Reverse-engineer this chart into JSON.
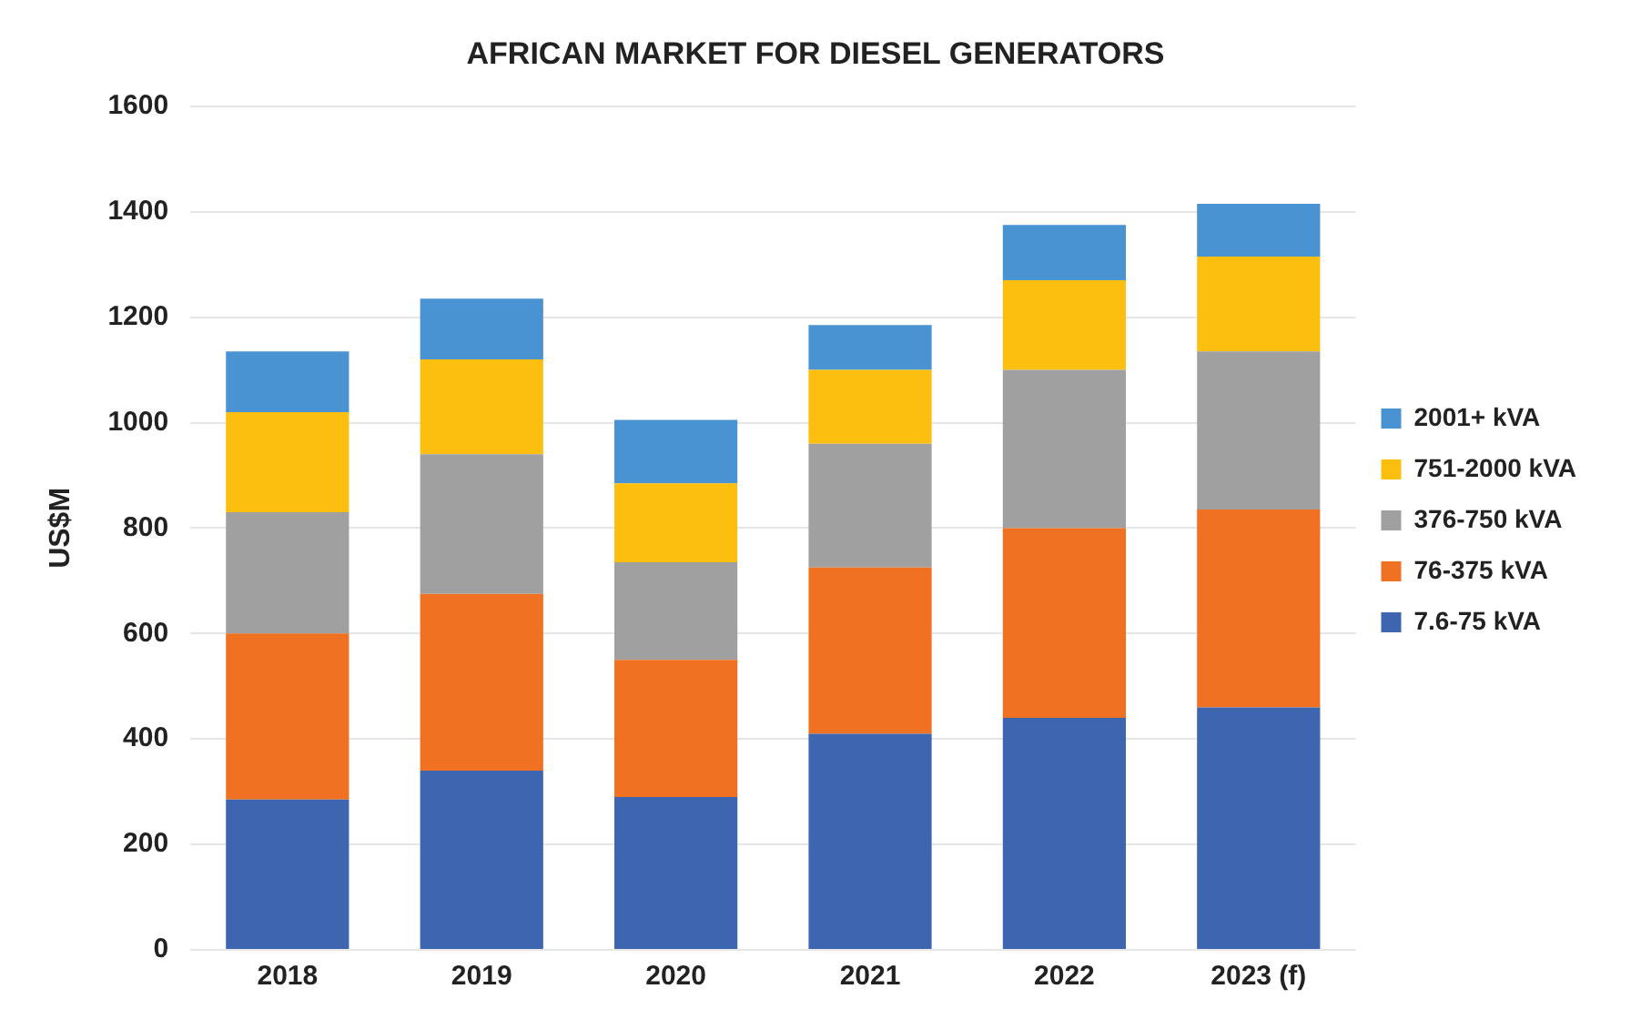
{
  "chart_data": {
    "type": "bar",
    "title": "AFRICAN MARKET FOR DIESEL GENERATORS",
    "ylabel": "US$M",
    "categories": [
      "2018",
      "2019",
      "2020",
      "2021",
      "2022",
      "2023 (f)"
    ],
    "stacked": true,
    "ylim": [
      0,
      1600
    ],
    "yticks": [
      0,
      200,
      400,
      600,
      800,
      1000,
      1200,
      1400,
      1600
    ],
    "grid": "y",
    "legend": "right",
    "series": [
      {
        "name": "7.6-75 kVA",
        "color": "#3d65b0",
        "values": [
          285,
          340,
          290,
          410,
          440,
          460
        ]
      },
      {
        "name": "76-375 kVA",
        "color": "#f07122",
        "values": [
          315,
          335,
          260,
          315,
          360,
          375
        ]
      },
      {
        "name": "376-750 kVA",
        "color": "#a0a0a0",
        "values": [
          230,
          265,
          185,
          235,
          300,
          300
        ]
      },
      {
        "name": "751-2000 kVA",
        "color": "#fdbf0f",
        "values": [
          190,
          180,
          150,
          140,
          170,
          180
        ]
      },
      {
        "name": "2001+ kVA",
        "color": "#4a93d2",
        "values": [
          115,
          115,
          120,
          85,
          105,
          100
        ]
      }
    ]
  }
}
